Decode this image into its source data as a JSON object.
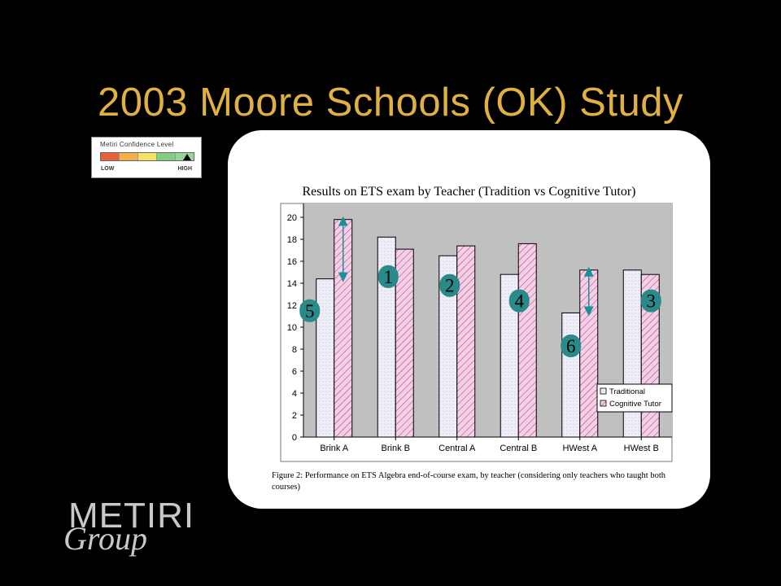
{
  "slide": {
    "title": "2003 Moore Schools (OK) Study"
  },
  "confidence_meter": {
    "title": "Metiri Confidence Level",
    "low_label": "LOW",
    "high_label": "HIGH",
    "segment_colors": [
      "#e8603c",
      "#f5b04a",
      "#f5e06a",
      "#80d080",
      "#9ad49a"
    ],
    "level_segment": 5
  },
  "chart": {
    "heading": "Results on ETS exam by Teacher (Tradition vs Cognitive Tutor)",
    "caption": "Figure 2: Performance on ETS Algebra end-of-course exam, by teacher (considering only teachers who taught both courses)"
  },
  "chart_data": {
    "type": "bar",
    "title": "",
    "xlabel": "",
    "ylabel": "",
    "categories": [
      "Brink A",
      "Brink B",
      "Central A",
      "Central B",
      "HWest A",
      "HWest B"
    ],
    "series": [
      {
        "name": "Traditional",
        "values": [
          14.4,
          18.2,
          16.5,
          14.8,
          11.3,
          15.2
        ]
      },
      {
        "name": "Cognitive Tutor",
        "values": [
          19.8,
          17.1,
          17.4,
          17.6,
          15.2,
          14.8
        ]
      }
    ],
    "ylim": [
      0,
      20
    ],
    "yticks": [
      0,
      2,
      4,
      6,
      8,
      10,
      12,
      14,
      16,
      18,
      20
    ],
    "grid": false,
    "legend_position": "bottom-right",
    "annotations": [
      {
        "label": "5",
        "category": "Brink A"
      },
      {
        "label": "1",
        "category": "Brink B"
      },
      {
        "label": "2",
        "category": "Central A"
      },
      {
        "label": "4",
        "category": "Central B"
      },
      {
        "label": "6",
        "category": "HWest A"
      },
      {
        "label": "3",
        "category": "HWest B"
      }
    ],
    "difference_arrows": [
      "Brink A",
      "HWest A"
    ]
  },
  "colors": {
    "title": "#e0b040",
    "plot_bg": "#c0c0c0",
    "traditional_fill": "#f0eef8",
    "tutor_fill": "#f2d0e6",
    "tutor_hatch": "#c0287a",
    "badge": "#2a8a8a",
    "arrow": "#1a8f9a"
  },
  "logo": {
    "line1": "METIRI",
    "line2": "Group"
  }
}
